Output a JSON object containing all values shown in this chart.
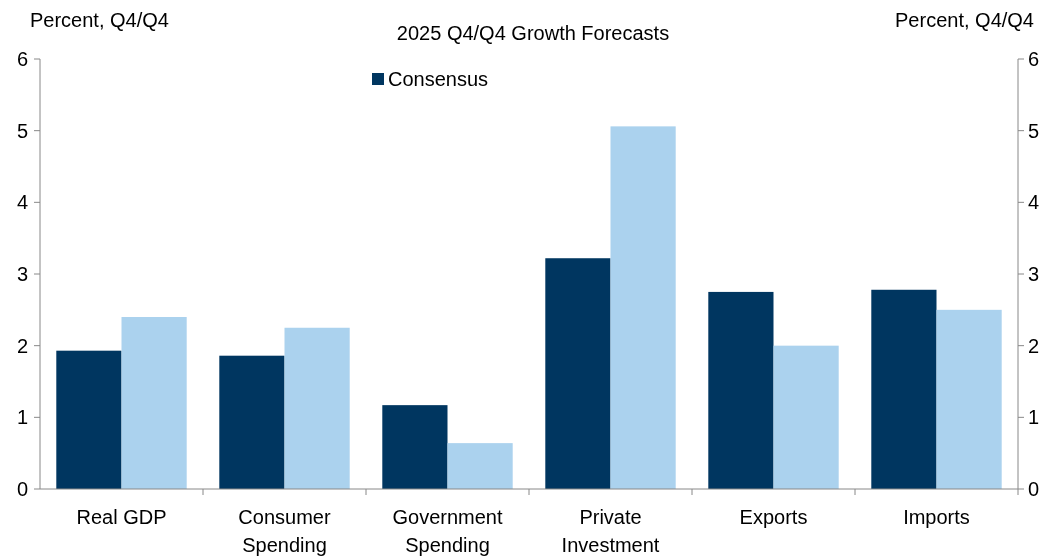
{
  "chart_data": {
    "type": "bar",
    "title": "2025 Q4/Q4 Growth Forecasts",
    "ylabel": "Percent, Q4/Q4",
    "y2label": "Percent, Q4/Q4",
    "categories": [
      "Real GDP",
      "Consumer Spending",
      "Government Spending",
      "Private Investment",
      "Exports",
      "Imports"
    ],
    "series": [
      {
        "name": "Consensus",
        "color": "#003660",
        "values": [
          1.93,
          1.86,
          1.17,
          3.22,
          2.75,
          2.78
        ]
      },
      {
        "color": "#abd2ee",
        "values": [
          2.4,
          2.25,
          0.64,
          5.06,
          2.0,
          2.5
        ]
      }
    ],
    "ylim": [
      0,
      6
    ],
    "yticks": [
      0,
      1,
      2,
      3,
      4,
      5,
      6
    ],
    "y2lim": [
      0,
      6
    ],
    "y2ticks": [
      0,
      1,
      2,
      3,
      4,
      5,
      6
    ],
    "legend": "top",
    "grid": false
  }
}
